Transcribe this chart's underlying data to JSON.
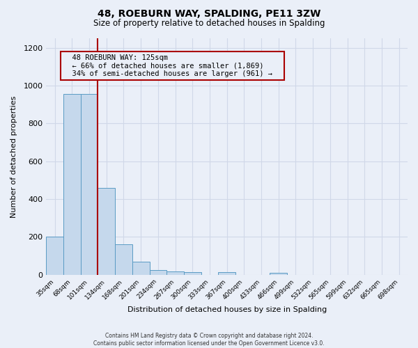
{
  "title": "48, ROEBURN WAY, SPALDING, PE11 3ZW",
  "subtitle": "Size of property relative to detached houses in Spalding",
  "xlabel": "Distribution of detached houses by size in Spalding",
  "ylabel": "Number of detached properties",
  "bar_labels": [
    "35sqm",
    "68sqm",
    "101sqm",
    "134sqm",
    "168sqm",
    "201sqm",
    "234sqm",
    "267sqm",
    "300sqm",
    "333sqm",
    "367sqm",
    "400sqm",
    "433sqm",
    "466sqm",
    "499sqm",
    "532sqm",
    "565sqm",
    "599sqm",
    "632sqm",
    "665sqm",
    "698sqm"
  ],
  "bar_values": [
    200,
    955,
    955,
    460,
    160,
    70,
    25,
    18,
    12,
    0,
    12,
    0,
    0,
    10,
    0,
    0,
    0,
    0,
    0,
    0,
    0
  ],
  "bar_color": "#c5d8ec",
  "bar_edge_color": "#5a9bc4",
  "property_line_x": 2.5,
  "property_line_color": "#aa0000",
  "annotation_title": "48 ROEBURN WAY: 125sqm",
  "annotation_line1": "← 66% of detached houses are smaller (1,869)",
  "annotation_line2": "34% of semi-detached houses are larger (961) →",
  "annotation_box_edge": "#aa0000",
  "ylim": [
    0,
    1250
  ],
  "yticks": [
    0,
    200,
    400,
    600,
    800,
    1000,
    1200
  ],
  "background_color": "#eaeff8",
  "grid_color": "#d0d8e8",
  "footer1": "Contains HM Land Registry data © Crown copyright and database right 2024.",
  "footer2": "Contains public sector information licensed under the Open Government Licence v3.0."
}
